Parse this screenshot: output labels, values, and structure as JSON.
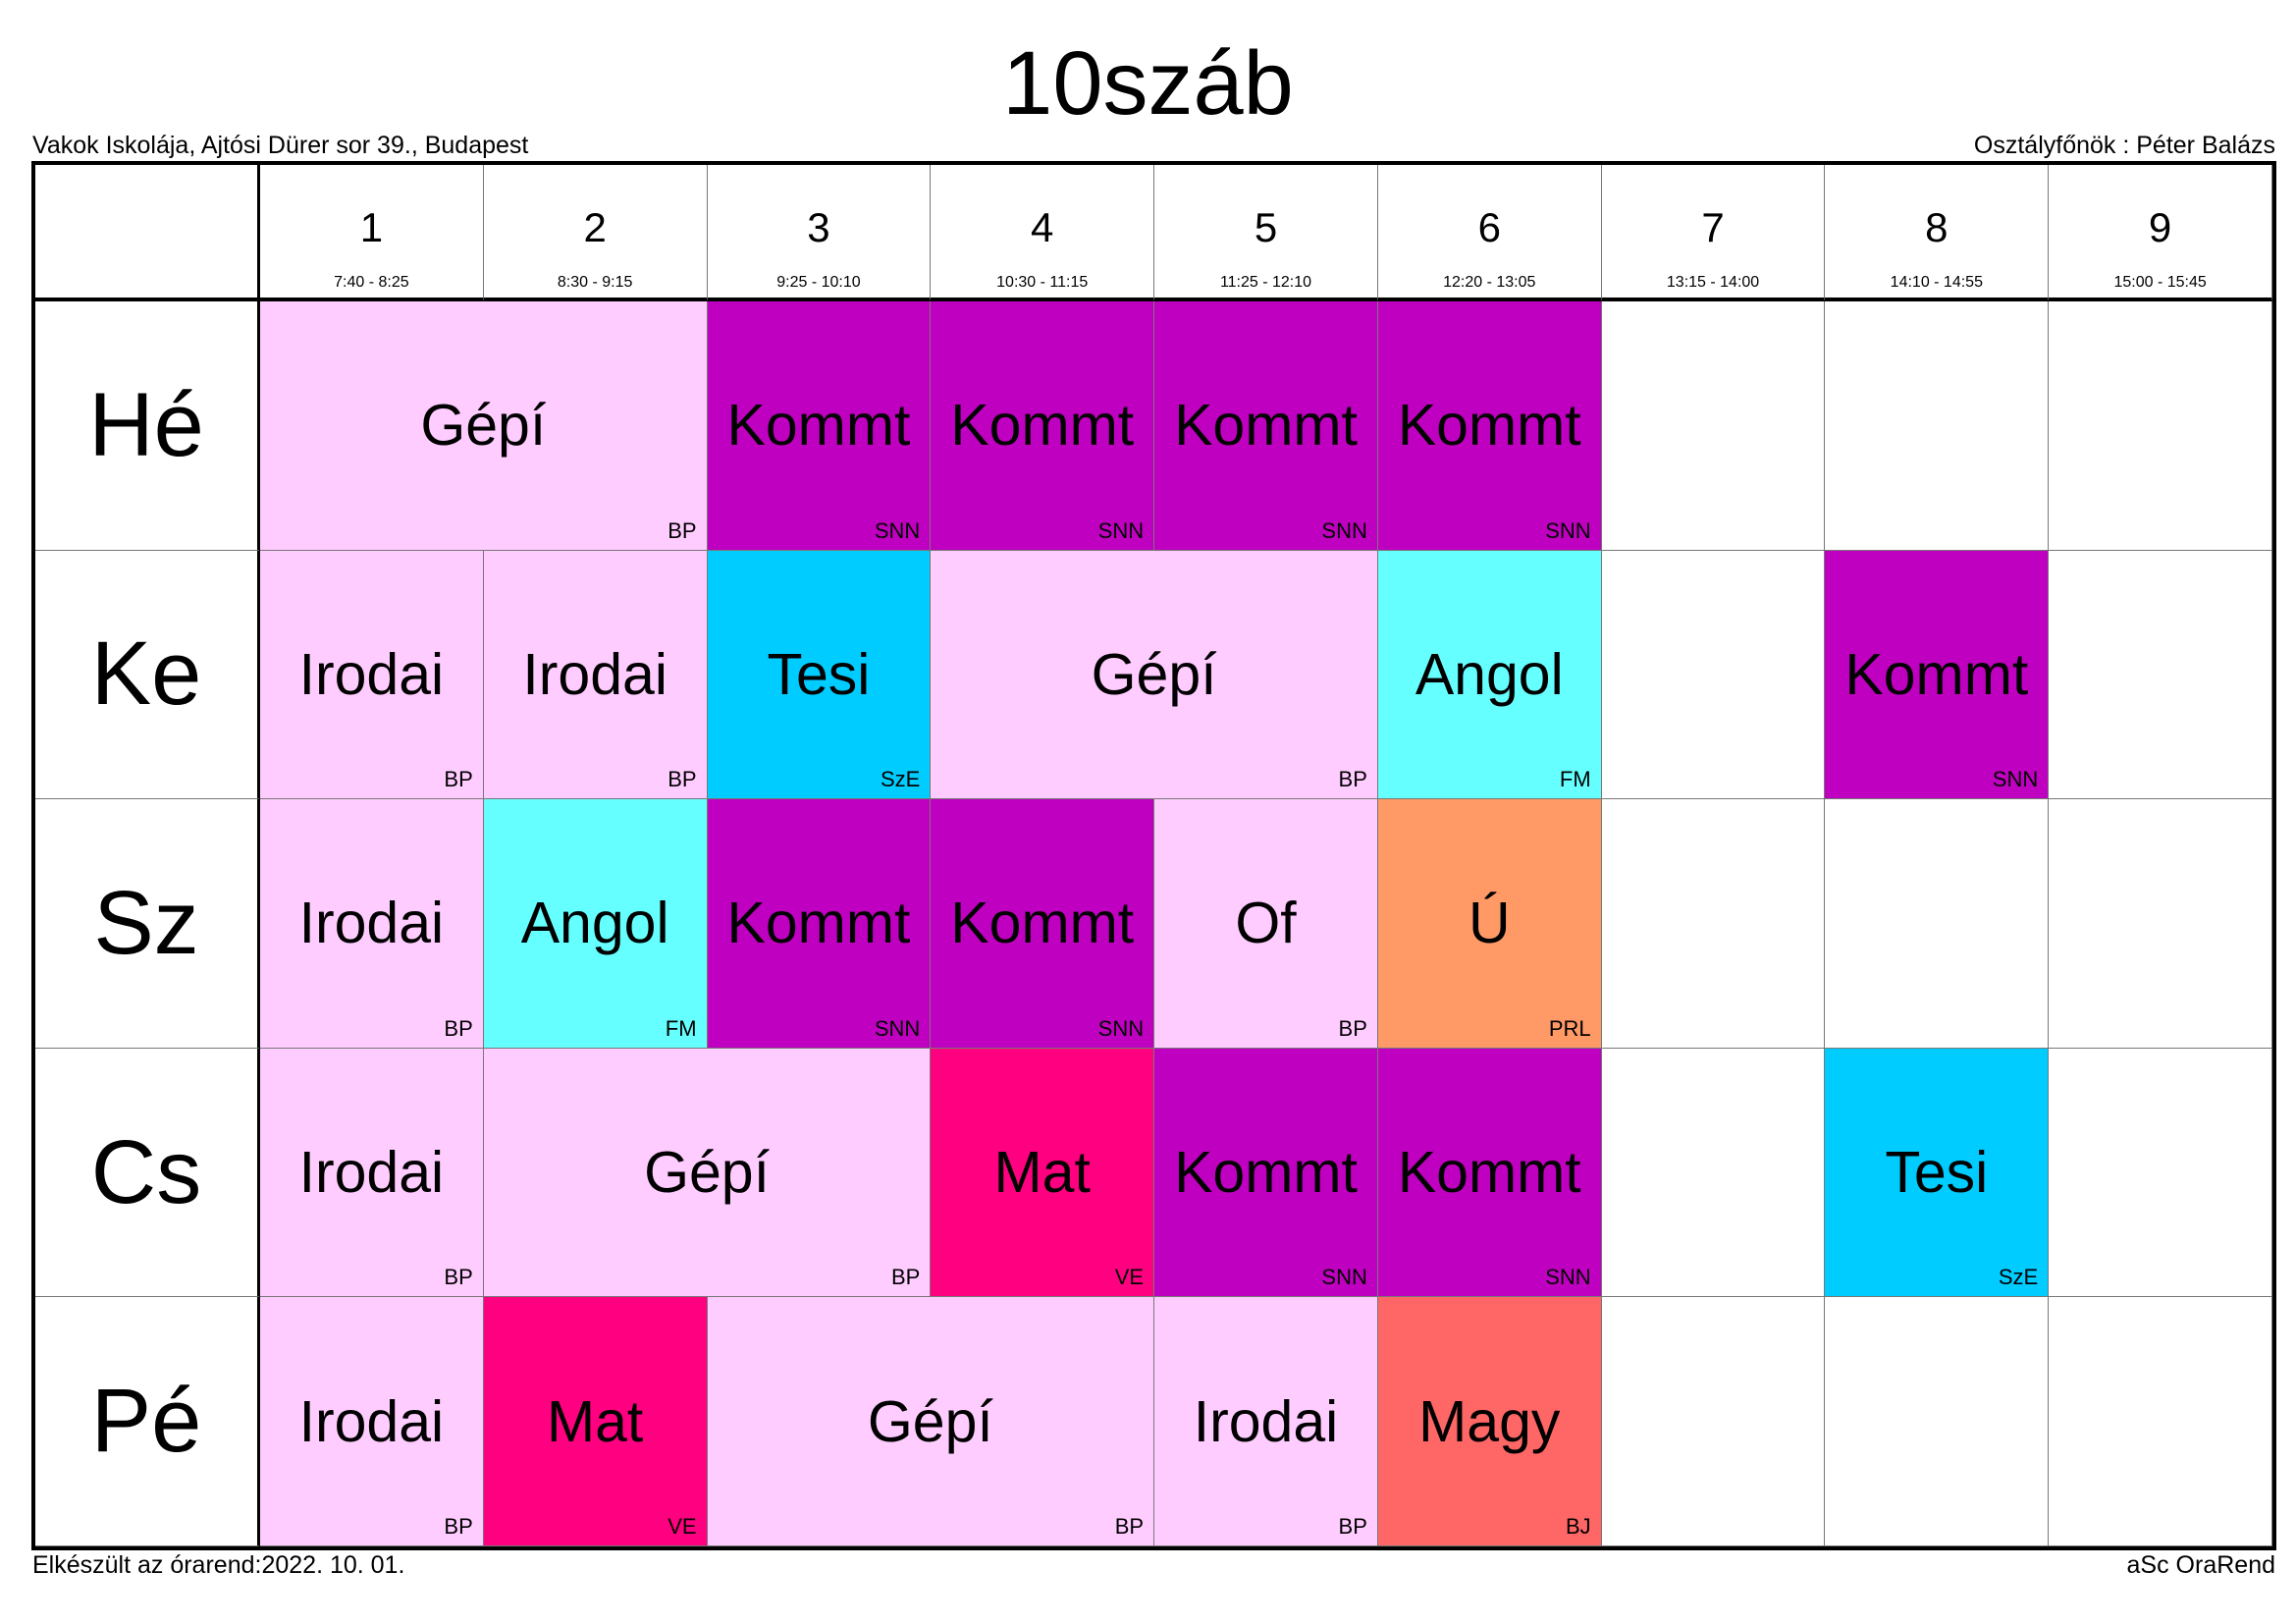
{
  "title": "10száb",
  "school": "Vakok Iskolája, Ajtósi Dürer sor 39., Budapest",
  "class_teacher": "Osztályfőnök : Péter Balázs",
  "footer_left": "Elkészült az órarend:2022. 10. 01.",
  "footer_right": "aSc OraRend",
  "periods": [
    {
      "num": "1",
      "time": "7:40 - 8:25"
    },
    {
      "num": "2",
      "time": "8:30 - 9:15"
    },
    {
      "num": "3",
      "time": "9:25 - 10:10"
    },
    {
      "num": "4",
      "time": "10:30 - 11:15"
    },
    {
      "num": "5",
      "time": "11:25 - 12:10"
    },
    {
      "num": "6",
      "time": "12:20 - 13:05"
    },
    {
      "num": "7",
      "time": "13:15 - 14:00"
    },
    {
      "num": "8",
      "time": "14:10 - 14:55"
    },
    {
      "num": "9",
      "time": "15:00 - 15:45"
    }
  ],
  "colors": {
    "Gépí": "#FFCCFF",
    "Irodai": "#FFCCFF",
    "Of": "#FFCCFF",
    "Kommt": "#C000C0",
    "Tesi": "#00CCFF",
    "Angol": "#66FFFF",
    "Ú": "#FF9966",
    "Mat": "#FF0080",
    "Magy": "#FF6666"
  },
  "days": [
    {
      "label": "Hé",
      "lessons": [
        {
          "start": 1,
          "span": 2,
          "subject": "Gépí",
          "teacher": "BP"
        },
        {
          "start": 3,
          "span": 1,
          "subject": "Kommt",
          "teacher": "SNN"
        },
        {
          "start": 4,
          "span": 1,
          "subject": "Kommt",
          "teacher": "SNN"
        },
        {
          "start": 5,
          "span": 1,
          "subject": "Kommt",
          "teacher": "SNN"
        },
        {
          "start": 6,
          "span": 1,
          "subject": "Kommt",
          "teacher": "SNN"
        }
      ]
    },
    {
      "label": "Ke",
      "lessons": [
        {
          "start": 1,
          "span": 1,
          "subject": "Irodai",
          "teacher": "BP"
        },
        {
          "start": 2,
          "span": 1,
          "subject": "Irodai",
          "teacher": "BP"
        },
        {
          "start": 3,
          "span": 1,
          "subject": "Tesi",
          "teacher": "SzE"
        },
        {
          "start": 4,
          "span": 2,
          "subject": "Gépí",
          "teacher": "BP"
        },
        {
          "start": 6,
          "span": 1,
          "subject": "Angol",
          "teacher": "FM"
        },
        {
          "start": 8,
          "span": 1,
          "subject": "Kommt",
          "teacher": "SNN"
        }
      ]
    },
    {
      "label": "Sz",
      "lessons": [
        {
          "start": 1,
          "span": 1,
          "subject": "Irodai",
          "teacher": "BP"
        },
        {
          "start": 2,
          "span": 1,
          "subject": "Angol",
          "teacher": "FM"
        },
        {
          "start": 3,
          "span": 1,
          "subject": "Kommt",
          "teacher": "SNN"
        },
        {
          "start": 4,
          "span": 1,
          "subject": "Kommt",
          "teacher": "SNN"
        },
        {
          "start": 5,
          "span": 1,
          "subject": "Of",
          "teacher": "BP"
        },
        {
          "start": 6,
          "span": 1,
          "subject": "Ú",
          "teacher": "PRL"
        }
      ]
    },
    {
      "label": "Cs",
      "lessons": [
        {
          "start": 1,
          "span": 1,
          "subject": "Irodai",
          "teacher": "BP"
        },
        {
          "start": 2,
          "span": 2,
          "subject": "Gépí",
          "teacher": "BP"
        },
        {
          "start": 4,
          "span": 1,
          "subject": "Mat",
          "teacher": "VE"
        },
        {
          "start": 5,
          "span": 1,
          "subject": "Kommt",
          "teacher": "SNN"
        },
        {
          "start": 6,
          "span": 1,
          "subject": "Kommt",
          "teacher": "SNN"
        },
        {
          "start": 8,
          "span": 1,
          "subject": "Tesi",
          "teacher": "SzE"
        }
      ]
    },
    {
      "label": "Pé",
      "lessons": [
        {
          "start": 1,
          "span": 1,
          "subject": "Irodai",
          "teacher": "BP"
        },
        {
          "start": 2,
          "span": 1,
          "subject": "Mat",
          "teacher": "VE"
        },
        {
          "start": 3,
          "span": 2,
          "subject": "Gépí",
          "teacher": "BP"
        },
        {
          "start": 5,
          "span": 1,
          "subject": "Irodai",
          "teacher": "BP"
        },
        {
          "start": 6,
          "span": 1,
          "subject": "Magy",
          "teacher": "BJ"
        }
      ]
    }
  ]
}
